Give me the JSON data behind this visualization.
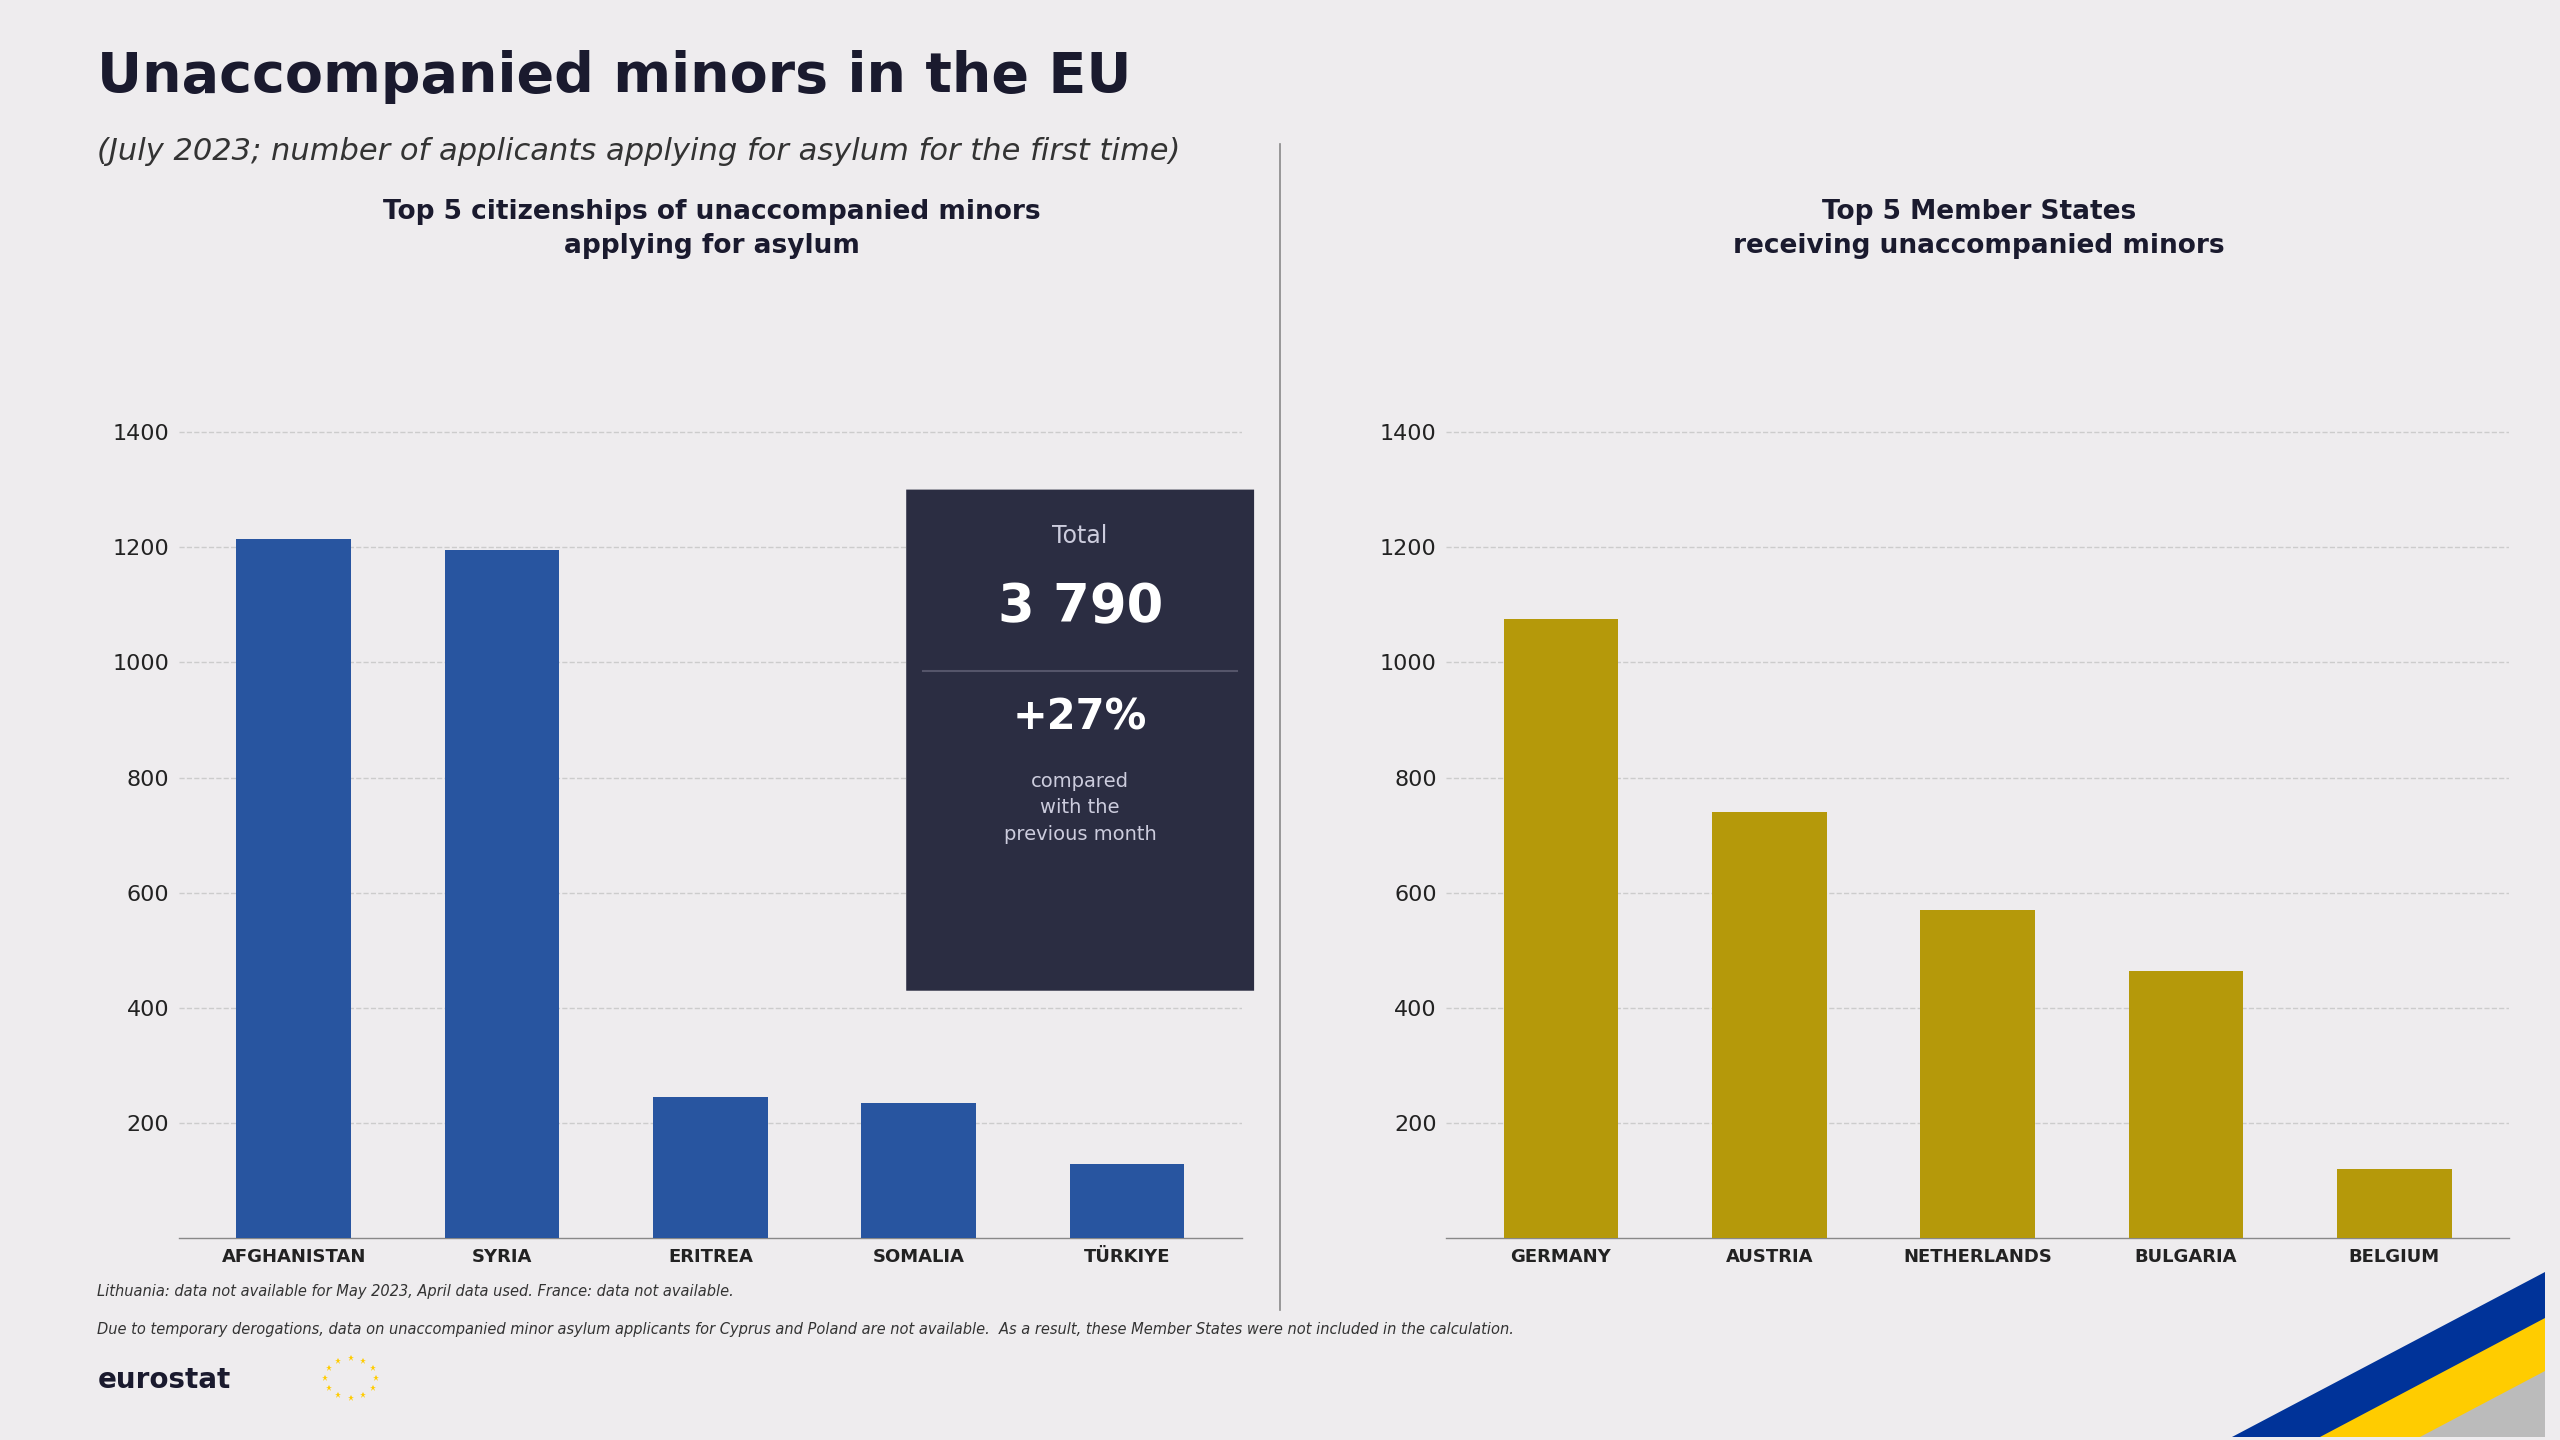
{
  "title": "Unaccompanied minors in the EU",
  "subtitle": "(July 2023; number of applicants applying for asylum for the first time)",
  "left_panel_title": "Top 5 citizenships of unaccompanied minors\napplying for asylum",
  "right_panel_title": "Top 5 Member States\nreceiving unaccompanied minors",
  "left_categories": [
    "AFGHANISTAN",
    "SYRIA",
    "ERITREA",
    "SOMALIA",
    "TÜRKIYE"
  ],
  "left_values": [
    1215,
    1195,
    245,
    235,
    130
  ],
  "right_categories": [
    "GERMANY",
    "AUSTRIA",
    "NETHERLANDS",
    "BULGARIA",
    "BELGIUM"
  ],
  "right_values": [
    1075,
    740,
    570,
    465,
    120
  ],
  "left_bar_color": "#2855a0",
  "right_bar_color": "#b5990a",
  "bg_color": "#eeecee",
  "annotation_bg": "#2b2d42",
  "annotation_text_color": "#ffffff",
  "annotation_total_label": "Total",
  "annotation_total_value": "3 790",
  "annotation_pct": "+27%",
  "annotation_pct_sub": "compared\nwith the\nprevious month",
  "ylim": [
    0,
    1500
  ],
  "yticks": [
    200,
    400,
    600,
    800,
    1000,
    1200,
    1400
  ],
  "footnote1": "Lithuania: data not available for May 2023, April data used. France: data not available.",
  "footnote2": "Due to temporary derogations, data on unaccompanied minor asylum applicants for Cyprus and Poland are not available.  As a result, these Member States were not included in the calculation.",
  "eurostat_label": "eurostat",
  "divider_color": "#888888",
  "grid_color": "#cccccc",
  "tick_label_color": "#222222",
  "title_fontsize": 40,
  "subtitle_fontsize": 22,
  "panel_title_fontsize": 19,
  "ytick_fontsize": 16,
  "xtick_fontsize": 13
}
